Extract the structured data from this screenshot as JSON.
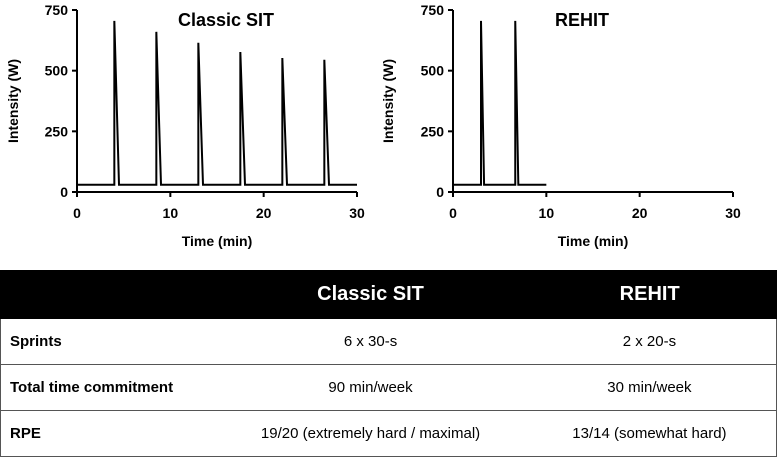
{
  "chart_data": [
    {
      "type": "line",
      "title": "Classic SIT",
      "xlabel": "Time (min)",
      "ylabel": "Intensity (W)",
      "xlim": [
        0,
        30
      ],
      "ylim": [
        0,
        750
      ],
      "xticks": [
        0,
        10,
        20,
        30
      ],
      "yticks": [
        0,
        250,
        500,
        750
      ],
      "grid": false,
      "baseline_intensity": 30,
      "baseline_end": 30,
      "sprints": [
        {
          "start": 4.0,
          "end": 4.5,
          "peak": 705
        },
        {
          "start": 8.5,
          "end": 9.0,
          "peak": 660
        },
        {
          "start": 13.0,
          "end": 13.5,
          "peak": 615
        },
        {
          "start": 17.5,
          "end": 18.0,
          "peak": 577
        },
        {
          "start": 22.0,
          "end": 22.5,
          "peak": 552
        },
        {
          "start": 26.5,
          "end": 27.0,
          "peak": 545
        }
      ]
    },
    {
      "type": "line",
      "title": "REHIT",
      "xlabel": "Time (min)",
      "ylabel": "Intensity (W)",
      "xlim": [
        0,
        30
      ],
      "ylim": [
        0,
        750
      ],
      "xticks": [
        0,
        10,
        20,
        30
      ],
      "yticks": [
        0,
        250,
        500,
        750
      ],
      "grid": false,
      "baseline_intensity": 30,
      "baseline_end": 10,
      "sprints": [
        {
          "start": 3.0,
          "end": 3.33,
          "peak": 705
        },
        {
          "start": 6.67,
          "end": 7.0,
          "peak": 705
        }
      ]
    }
  ],
  "table": {
    "headers": [
      "",
      "Classic SIT",
      "REHIT"
    ],
    "rows": [
      {
        "label": "Sprints",
        "classic": "6 x 30-s",
        "rehit": "2 x 20-s"
      },
      {
        "label": "Total time commitment",
        "classic": "90 min/week",
        "rehit": "30 min/week"
      },
      {
        "label": "RPE",
        "classic": "19/20 (extremely hard / maximal)",
        "rehit": "13/14 (somewhat hard)"
      }
    ]
  }
}
